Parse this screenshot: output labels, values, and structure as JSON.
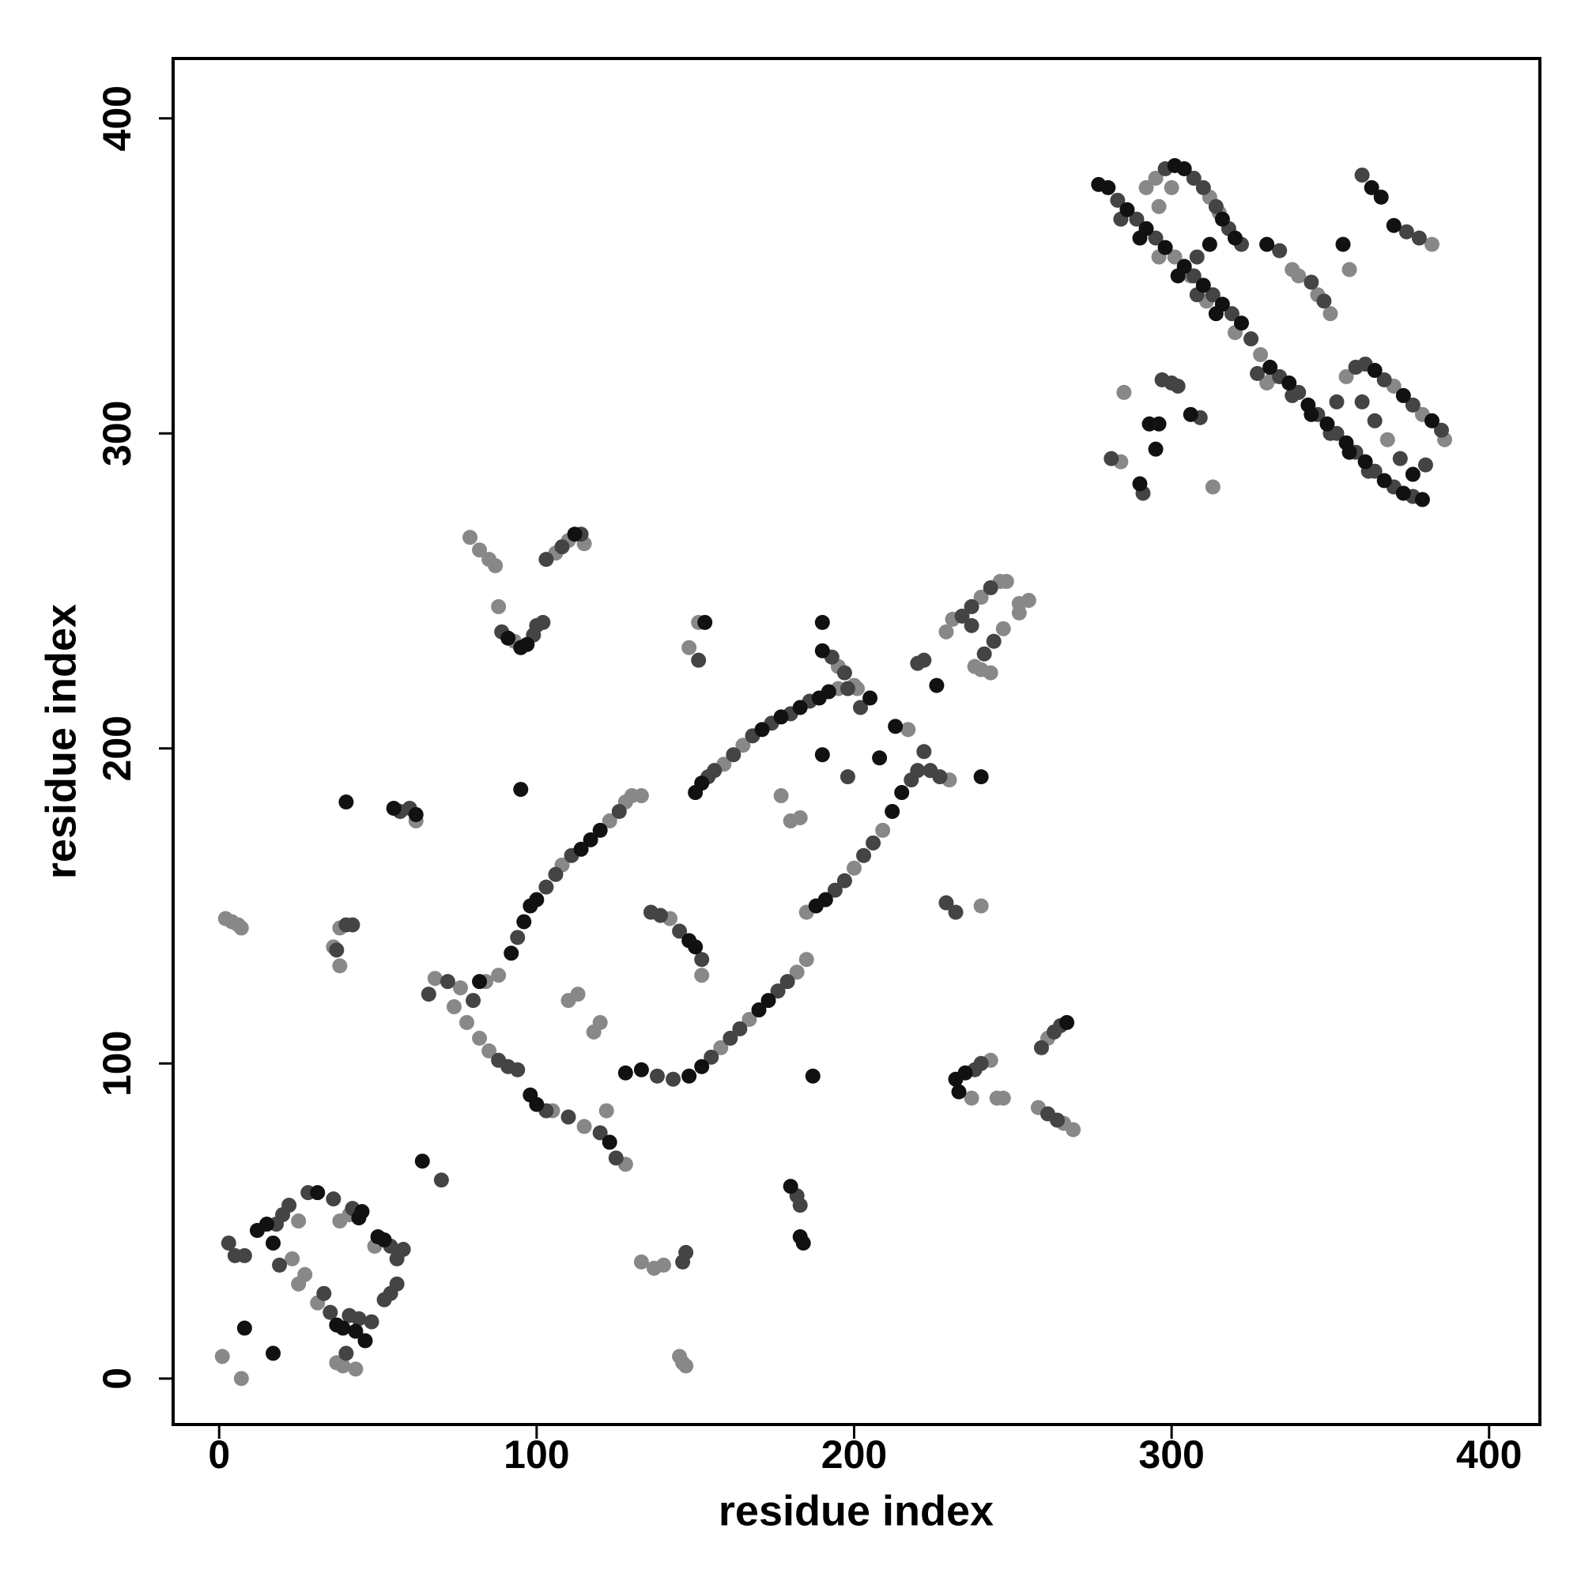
{
  "chart_data": {
    "type": "scatter",
    "x_label": "residue index",
    "y_label": "residue index",
    "xlim": [
      -14.5,
      416
    ],
    "ylim": [
      -14.6,
      419
    ],
    "xticks": [
      0,
      100,
      200,
      300,
      400
    ],
    "yticks": [
      0,
      100,
      200,
      300,
      400
    ],
    "series": [
      {
        "color": "#888888",
        "x": [
          1,
          7,
          23,
          25,
          25,
          27,
          31,
          37,
          43,
          39,
          38,
          41,
          49,
          133,
          137,
          140,
          145,
          146,
          147,
          38,
          36,
          38,
          2,
          4,
          6,
          7,
          62,
          79,
          82,
          85,
          87,
          88,
          93,
          106,
          110,
          115,
          128,
          130,
          133,
          68,
          76,
          84,
          88,
          108,
          123,
          159,
          165,
          195,
          201,
          74,
          78,
          82,
          85,
          105,
          115,
          122,
          128,
          158,
          167,
          182,
          185,
          185,
          200,
          209,
          217,
          195,
          200,
          230,
          142,
          152,
          110,
          113,
          120,
          118,
          177,
          180,
          183,
          151,
          148,
          229,
          231,
          240,
          246,
          248,
          252,
          255,
          252,
          247,
          238,
          240,
          243,
          240,
          243,
          237,
          245,
          247,
          261,
          258,
          266,
          269,
          301,
          328,
          296,
          320,
          332,
          292,
          295,
          312,
          306,
          315,
          300,
          296,
          355,
          370,
          379,
          386,
          368,
          284,
          313,
          285,
          311,
          338,
          340,
          346,
          350,
          356,
          382,
          330
        ],
        "y": [
          7,
          0,
          38,
          50,
          30,
          33,
          24,
          5,
          3,
          4,
          50,
          52,
          42,
          37,
          35,
          36,
          7,
          5,
          4,
          143,
          137,
          131,
          146,
          145,
          144,
          143,
          177,
          267,
          263,
          260,
          258,
          245,
          234,
          262,
          266,
          265,
          183,
          185,
          185,
          127,
          124,
          126,
          128,
          163,
          177,
          195,
          201,
          219,
          219,
          118,
          113,
          108,
          104,
          85,
          80,
          85,
          68,
          105,
          114,
          129,
          133,
          148,
          162,
          174,
          206,
          226,
          220,
          190,
          146,
          128,
          120,
          122,
          113,
          110,
          185,
          177,
          178,
          240,
          232,
          237,
          241,
          248,
          253,
          253,
          246,
          247,
          243,
          238,
          226,
          225,
          224,
          150,
          101,
          89,
          89,
          89,
          108,
          86,
          81,
          79,
          356,
          325,
          356,
          332,
          318,
          378,
          381,
          375,
          350,
          370,
          378,
          372,
          318,
          315,
          306,
          298,
          298,
          291,
          283,
          313,
          342,
          352,
          350,
          344,
          338,
          352,
          360,
          316
        ]
      },
      {
        "color": "#444444",
        "x": [
          3,
          5,
          8,
          19,
          20,
          22,
          28,
          18,
          33,
          35,
          41,
          44,
          48,
          52,
          54,
          56,
          40,
          36,
          42,
          54,
          56,
          58,
          70,
          147,
          146,
          182,
          183,
          37,
          40,
          42,
          57,
          60,
          89,
          99,
          100,
          102,
          103,
          108,
          114,
          66,
          72,
          80,
          94,
          103,
          106,
          111,
          126,
          154,
          156,
          162,
          168,
          174,
          180,
          186,
          198,
          88,
          91,
          94,
          103,
          110,
          120,
          125,
          138,
          143,
          155,
          161,
          164,
          176,
          179,
          194,
          197,
          203,
          206,
          218,
          220,
          222,
          193,
          197,
          224,
          227,
          136,
          139,
          145,
          152,
          151,
          198,
          202,
          220,
          222,
          234,
          237,
          243,
          244,
          241,
          237,
          229,
          232,
          238,
          240,
          259,
          263,
          265,
          261,
          264,
          283,
          289,
          295,
          307,
          313,
          319,
          325,
          334,
          340,
          346,
          352,
          358,
          364,
          370,
          376,
          284,
          308,
          338,
          350,
          362,
          298,
          307,
          310,
          314,
          318,
          322,
          308,
          358,
          361,
          367,
          376,
          385,
          380,
          372,
          364,
          360,
          352,
          281,
          291,
          297,
          300,
          302,
          309,
          334,
          344,
          348,
          374,
          378,
          327,
          360
        ],
        "y": [
          43,
          39,
          39,
          36,
          52,
          55,
          59,
          49,
          27,
          21,
          20,
          19,
          18,
          25,
          27,
          30,
          8,
          57,
          54,
          42,
          38,
          41,
          63,
          40,
          37,
          58,
          55,
          136,
          144,
          144,
          180,
          181,
          237,
          236,
          239,
          240,
          260,
          264,
          268,
          122,
          126,
          120,
          140,
          156,
          160,
          166,
          180,
          191,
          193,
          198,
          204,
          208,
          211,
          215,
          219,
          101,
          99,
          98,
          85,
          83,
          78,
          70,
          96,
          95,
          102,
          108,
          111,
          123,
          126,
          155,
          158,
          166,
          170,
          190,
          193,
          199,
          229,
          224,
          193,
          191,
          148,
          147,
          142,
          133,
          228,
          191,
          213,
          227,
          228,
          242,
          245,
          251,
          234,
          230,
          239,
          151,
          148,
          98,
          100,
          105,
          110,
          112,
          84,
          82,
          374,
          368,
          362,
          350,
          344,
          338,
          330,
          318,
          313,
          306,
          300,
          294,
          288,
          283,
          280,
          368,
          344,
          312,
          300,
          288,
          384,
          381,
          378,
          372,
          365,
          360,
          356,
          321,
          322,
          317,
          309,
          301,
          290,
          292,
          304,
          310,
          310,
          292,
          281,
          317,
          316,
          315,
          305,
          358,
          348,
          342,
          364,
          362,
          319,
          382
        ]
      },
      {
        "color": "#111111",
        "x": [
          8,
          17,
          12,
          15,
          17,
          31,
          37,
          39,
          43,
          46,
          50,
          52,
          44,
          45,
          64,
          183,
          184,
          180,
          40,
          55,
          62,
          95,
          91,
          95,
          97,
          112,
          82,
          92,
          96,
          98,
          100,
          114,
          117,
          120,
          150,
          152,
          171,
          177,
          183,
          189,
          192,
          205,
          98,
          100,
          123,
          128,
          133,
          148,
          152,
          170,
          173,
          188,
          191,
          212,
          215,
          208,
          213,
          190,
          148,
          150,
          153,
          190,
          187,
          190,
          226,
          240,
          232,
          235,
          233,
          267,
          277,
          280,
          286,
          292,
          298,
          304,
          310,
          316,
          322,
          331,
          337,
          343,
          349,
          355,
          361,
          367,
          373,
          379,
          290,
          302,
          314,
          344,
          356,
          301,
          304,
          316,
          320,
          312,
          364,
          373,
          382,
          376,
          290,
          293,
          296,
          295,
          306,
          354,
          363,
          366,
          370,
          330
        ],
        "y": [
          16,
          8,
          47,
          49,
          43,
          59,
          17,
          16,
          15,
          12,
          45,
          44,
          51,
          53,
          69,
          45,
          43,
          61,
          183,
          181,
          179,
          187,
          235,
          232,
          233,
          268,
          126,
          135,
          145,
          150,
          152,
          168,
          171,
          174,
          186,
          189,
          206,
          210,
          213,
          216,
          218,
          216,
          90,
          87,
          75,
          97,
          98,
          96,
          99,
          117,
          120,
          150,
          152,
          180,
          186,
          197,
          207,
          231,
          139,
          137,
          240,
          240,
          96,
          198,
          220,
          191,
          95,
          97,
          91,
          113,
          379,
          378,
          371,
          365,
          359,
          353,
          347,
          341,
          335,
          321,
          316,
          309,
          303,
          297,
          291,
          285,
          281,
          279,
          362,
          350,
          338,
          306,
          294,
          385,
          384,
          368,
          362,
          360,
          320,
          312,
          304,
          287,
          284,
          303,
          303,
          295,
          306,
          360,
          378,
          375,
          366,
          360
        ]
      }
    ]
  }
}
